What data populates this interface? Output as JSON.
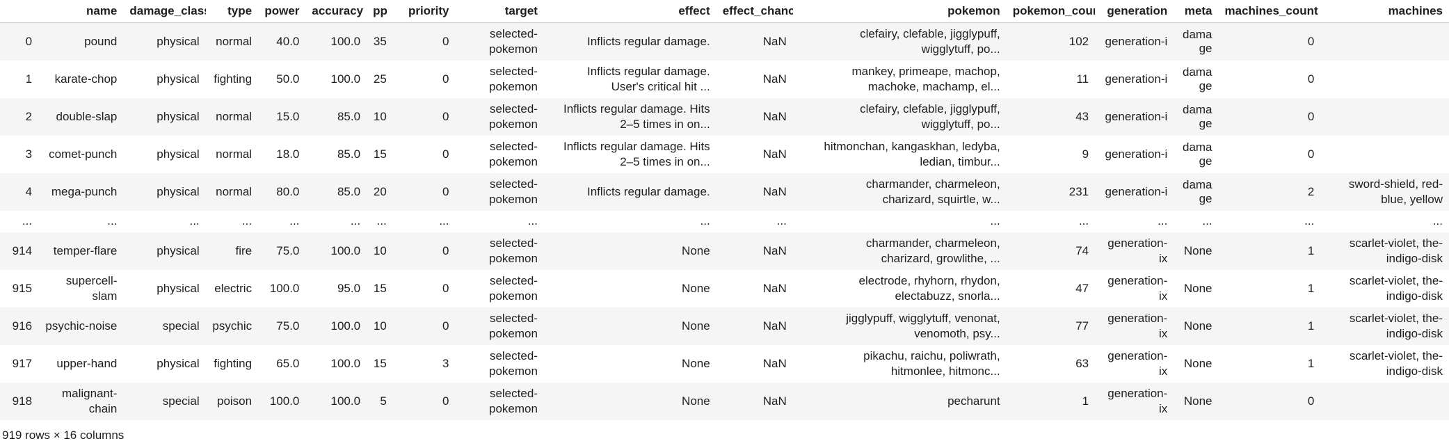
{
  "dataframe": {
    "index_header": "",
    "columns": [
      "name",
      "damage_class",
      "type",
      "power",
      "accuracy",
      "pp",
      "priority",
      "target",
      "effect",
      "effect_chance",
      "pokemon",
      "pokemon_count",
      "generation",
      "meta",
      "machines_count",
      "machines"
    ],
    "rows": [
      [
        "0",
        "pound",
        "physical",
        "normal",
        "40.0",
        "100.0",
        "35",
        "0",
        "selected-\npokemon",
        "Inflicts regular damage.",
        "NaN",
        "clefairy, clefable, jigglypuff,\nwigglytuff, po...",
        "102",
        "generation-i",
        "damage",
        "0",
        ""
      ],
      [
        "1",
        "karate-chop",
        "physical",
        "fighting",
        "50.0",
        "100.0",
        "25",
        "0",
        "selected-\npokemon",
        "Inflicts regular damage.\nUser's critical hit ...",
        "NaN",
        "mankey, primeape, machop,\nmachoke, machamp, el...",
        "11",
        "generation-i",
        "damage",
        "0",
        ""
      ],
      [
        "2",
        "double-slap",
        "physical",
        "normal",
        "15.0",
        "85.0",
        "10",
        "0",
        "selected-\npokemon",
        "Inflicts regular damage. Hits\n2–5 times in on...",
        "NaN",
        "clefairy, clefable, jigglypuff,\nwigglytuff, po...",
        "43",
        "generation-i",
        "damage",
        "0",
        ""
      ],
      [
        "3",
        "comet-punch",
        "physical",
        "normal",
        "18.0",
        "85.0",
        "15",
        "0",
        "selected-\npokemon",
        "Inflicts regular damage. Hits\n2–5 times in on...",
        "NaN",
        "hitmonchan, kangaskhan, ledyba,\nledian, timbur...",
        "9",
        "generation-i",
        "damage",
        "0",
        ""
      ],
      [
        "4",
        "mega-punch",
        "physical",
        "normal",
        "80.0",
        "85.0",
        "20",
        "0",
        "selected-\npokemon",
        "Inflicts regular damage.",
        "NaN",
        "charmander, charmeleon,\ncharizard, squirtle, w...",
        "231",
        "generation-i",
        "damage",
        "2",
        "sword-shield, red-\nblue, yellow"
      ],
      [
        "...",
        "...",
        "...",
        "...",
        "...",
        "...",
        "...",
        "...",
        "...",
        "...",
        "...",
        "...",
        "...",
        "...",
        "...",
        "...",
        "..."
      ],
      [
        "914",
        "temper-flare",
        "physical",
        "fire",
        "75.0",
        "100.0",
        "10",
        "0",
        "selected-\npokemon",
        "None",
        "NaN",
        "charmander, charmeleon,\ncharizard, growlithe, ...",
        "74",
        "generation-\nix",
        "None",
        "1",
        "scarlet-violet, the-\nindigo-disk"
      ],
      [
        "915",
        "supercell-\nslam",
        "physical",
        "electric",
        "100.0",
        "95.0",
        "15",
        "0",
        "selected-\npokemon",
        "None",
        "NaN",
        "electrode, rhyhorn, rhydon,\nelectabuzz, snorla...",
        "47",
        "generation-\nix",
        "None",
        "1",
        "scarlet-violet, the-\nindigo-disk"
      ],
      [
        "916",
        "psychic-noise",
        "special",
        "psychic",
        "75.0",
        "100.0",
        "10",
        "0",
        "selected-\npokemon",
        "None",
        "NaN",
        "jigglypuff, wigglytuff, venonat,\nvenomoth, psy...",
        "77",
        "generation-\nix",
        "None",
        "1",
        "scarlet-violet, the-\nindigo-disk"
      ],
      [
        "917",
        "upper-hand",
        "physical",
        "fighting",
        "65.0",
        "100.0",
        "15",
        "3",
        "selected-\npokemon",
        "None",
        "NaN",
        "pikachu, raichu, poliwrath,\nhitmonlee, hitmonc...",
        "63",
        "generation-\nix",
        "None",
        "1",
        "scarlet-violet, the-\nindigo-disk"
      ],
      [
        "918",
        "malignant-\nchain",
        "special",
        "poison",
        "100.0",
        "100.0",
        "5",
        "0",
        "selected-\npokemon",
        "None",
        "NaN",
        "pecharunt",
        "1",
        "generation-\nix",
        "None",
        "0",
        ""
      ]
    ],
    "shape_note": "919 rows × 16 columns"
  }
}
